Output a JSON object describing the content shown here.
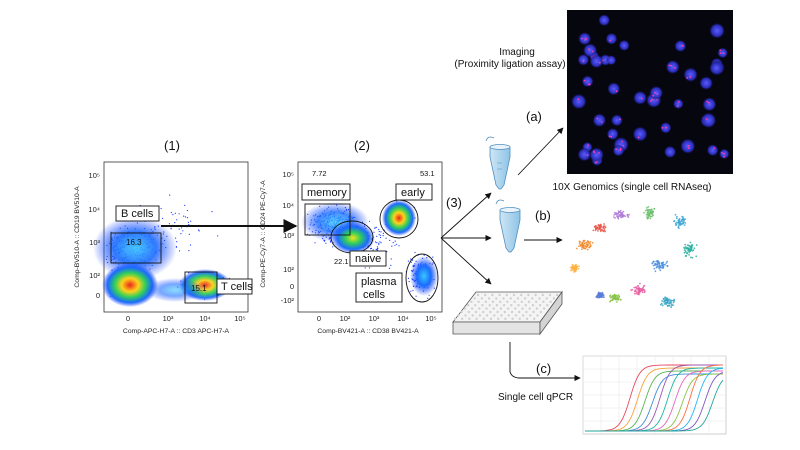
{
  "steps": {
    "s1": "(1)",
    "s2": "(2)",
    "s3": "(3)",
    "a": "(a)",
    "b": "(b)",
    "c": "(c)"
  },
  "plot1": {
    "ylabel": "Comp-BV510-A :: CD19 BV510-A",
    "xlabel": "Comp-APC-H7-A :: CD3 APC-H7-A",
    "yticks": [
      "10⁵",
      "10⁴",
      "10³",
      "10²",
      "0"
    ],
    "xticks": [
      "0",
      "10³",
      "10⁴",
      "10⁵"
    ],
    "gate_b": "B cells",
    "gate_t": "T cells",
    "val_b": "16.3",
    "val_t": "15.1"
  },
  "plot2": {
    "ylabel": "Comp-PE-Cy7-A :: CD24 PE-Cy7-A",
    "xlabel": "Comp-BV421-A :: CD38 BV421-A",
    "yticks": [
      "10⁵",
      "10⁴",
      "10³",
      "10²",
      "0",
      "-10²"
    ],
    "xticks": [
      "0",
      "10²",
      "10³",
      "10⁴",
      "10⁵"
    ],
    "val_tl": "7.72",
    "val_tr": "53.1",
    "val_naive": "22.1",
    "gate_memory": "memory",
    "gate_early": "early",
    "gate_naive": "naive",
    "gate_plasma_1": "plasma",
    "gate_plasma_2": "cells"
  },
  "imaging": {
    "line1": "Imaging",
    "line2": "(Proximity ligation assay)"
  },
  "genomics": "10X Genomics (single cell RNAseq)",
  "qpcr": "Single cell qPCR",
  "colors": {
    "dense_red": "#e8261c",
    "mid_green": "#2fcf5a",
    "sparse_blue": "#1a3cff",
    "arrow": "#111111"
  }
}
